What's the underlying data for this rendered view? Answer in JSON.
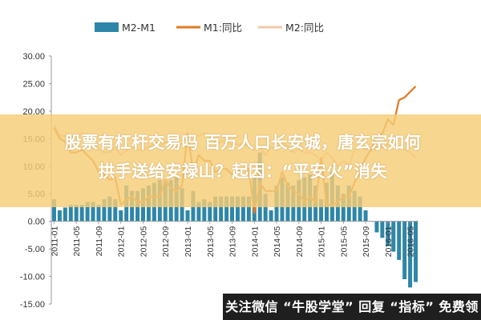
{
  "chart_data": {
    "type": "bar",
    "title": "",
    "xlabel": "",
    "ylabel": "",
    "ylim": [
      -15,
      30
    ],
    "yticks": [
      "30.00",
      "25.00",
      "20.00",
      "15.00",
      "10.00",
      "5.00",
      "0.00",
      "-5.00",
      "-10.00",
      "-15.00"
    ],
    "x_tick_labels": [
      "2011-01",
      "2011-05",
      "2011-09",
      "2012-01",
      "2012-05",
      "2012-09",
      "2013-01",
      "2013-05",
      "2013-09",
      "2014-01",
      "2014-05",
      "2014-09",
      "2015-01",
      "2015-05",
      "2015-09",
      "2016-01",
      "2016-05"
    ],
    "legend_position": "top",
    "grid": false,
    "categories": [
      "2011-01",
      "2011-02",
      "2011-03",
      "2011-04",
      "2011-05",
      "2011-06",
      "2011-07",
      "2011-08",
      "2011-09",
      "2011-10",
      "2011-11",
      "2011-12",
      "2012-01",
      "2012-02",
      "2012-03",
      "2012-04",
      "2012-05",
      "2012-06",
      "2012-07",
      "2012-08",
      "2012-09",
      "2012-10",
      "2012-11",
      "2012-12",
      "2013-01",
      "2013-02",
      "2013-03",
      "2013-04",
      "2013-05",
      "2013-06",
      "2013-07",
      "2013-08",
      "2013-09",
      "2013-10",
      "2013-11",
      "2013-12",
      "2014-01",
      "2014-02",
      "2014-03",
      "2014-04",
      "2014-05",
      "2014-06",
      "2014-07",
      "2014-08",
      "2014-09",
      "2014-10",
      "2014-11",
      "2014-12",
      "2015-01",
      "2015-02",
      "2015-03",
      "2015-04",
      "2015-05",
      "2015-06",
      "2015-07",
      "2015-08",
      "2015-09",
      "2015-10",
      "2015-11",
      "2015-12",
      "2016-01",
      "2016-02",
      "2016-03",
      "2016-04",
      "2016-05",
      "2016-06"
    ],
    "series": [
      {
        "name": "M2-M1",
        "kind": "bar",
        "color": "#2e86a8",
        "values": [
          4.0,
          2.0,
          2.5,
          3.0,
          3.0,
          3.0,
          3.5,
          3.5,
          3.0,
          4.0,
          4.5,
          4.0,
          2.0,
          6.5,
          5.5,
          5.5,
          6.0,
          6.5,
          7.0,
          7.5,
          7.5,
          7.5,
          8.0,
          6.0,
          2.0,
          5.5,
          3.5,
          4.0,
          3.5,
          4.5,
          4.5,
          4.5,
          4.5,
          4.5,
          4.5,
          4.5,
          8.0,
          12.5,
          5.0,
          2.0,
          6.5,
          8.0,
          7.0,
          6.5,
          7.5,
          8.0,
          8.5,
          6.5,
          4.0,
          7.0,
          9.0,
          6.5,
          5.0,
          6.5,
          5.5,
          4.5,
          2.0,
          0.0,
          -2.0,
          -3.0,
          -4.5,
          -5.5,
          -7.0,
          -10.5,
          -12.0,
          -11.0
        ]
      },
      {
        "name": "M1:同比",
        "kind": "line",
        "color": "#e07a23",
        "values": [
          17.0,
          15.0,
          14.5,
          12.5,
          12.5,
          13.0,
          12.0,
          11.0,
          9.0,
          8.5,
          7.5,
          8.0,
          3.0,
          4.0,
          4.5,
          3.5,
          3.5,
          4.5,
          4.5,
          4.5,
          7.5,
          6.0,
          5.5,
          6.5,
          16.0,
          9.0,
          12.0,
          11.0,
          11.0,
          9.0,
          9.5,
          9.5,
          8.5,
          9.0,
          9.5,
          9.5,
          1.5,
          7.0,
          5.5,
          5.5,
          5.5,
          9.0,
          6.5,
          5.5,
          5.0,
          3.5,
          4.5,
          3.5,
          11.5,
          3.0,
          3.0,
          3.5,
          4.5,
          4.5,
          7.0,
          9.0,
          11.5,
          13.0,
          15.5,
          16.0,
          18.5,
          17.5,
          22.0,
          22.5,
          23.5,
          24.5
        ]
      },
      {
        "name": "M2:同比",
        "kind": "line",
        "color": "#f2c9a8",
        "values": [
          17.5,
          15.5,
          15.5,
          15.5,
          15.5,
          16.0,
          15.0,
          14.5,
          13.0,
          12.5,
          12.5,
          13.5,
          12.0,
          13.0,
          13.5,
          13.0,
          13.0,
          13.5,
          14.0,
          13.5,
          14.5,
          14.0,
          14.0,
          14.0,
          15.5,
          15.5,
          15.5,
          16.0,
          15.5,
          14.0,
          14.5,
          14.5,
          14.0,
          14.0,
          14.0,
          13.5,
          13.0,
          13.5,
          12.0,
          13.5,
          13.0,
          14.5,
          13.5,
          12.5,
          13.0,
          12.5,
          12.5,
          12.0,
          11.0,
          12.5,
          11.5,
          10.0,
          11.0,
          10.0,
          13.0,
          13.5,
          13.0,
          13.5,
          13.5,
          13.5,
          14.0,
          13.5,
          13.5,
          13.0,
          12.5,
          11.5
        ]
      }
    ]
  },
  "overlay": {
    "title_line1": "股票有杠杆交易吗 百万人口长安城，唐玄宗如何",
    "title_line2": "拱手送给安禄山？起因：“平安火”消失",
    "bottom_text": "关注微信 “牛股学堂” 回复 “指标” 免费领",
    "banner_color": "#f5cd78"
  }
}
